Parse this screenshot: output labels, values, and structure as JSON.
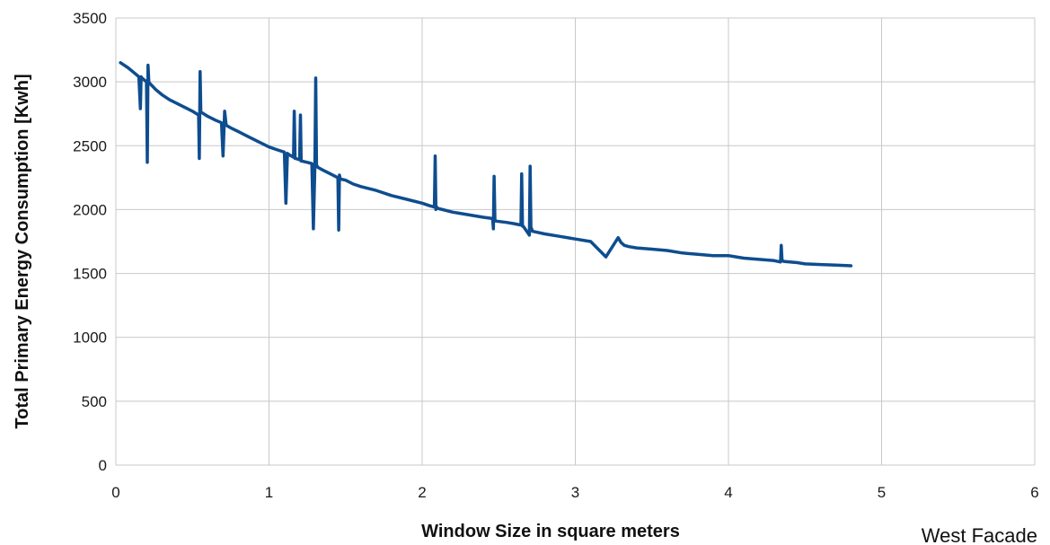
{
  "chart_data": {
    "type": "line",
    "title": "",
    "xlabel": "Window Size in square meters",
    "ylabel": "Total Primary Energy Consumption [Kwh]",
    "caption": "West Facade",
    "xlim": [
      0,
      6
    ],
    "ylim": [
      0,
      3500
    ],
    "x_ticks": [
      0,
      1,
      2,
      3,
      4,
      5,
      6
    ],
    "y_ticks": [
      0,
      500,
      1000,
      1500,
      2000,
      2500,
      3000,
      3500
    ],
    "grid": true,
    "legend": "none",
    "colors": {
      "series": "#0e4d8f",
      "grid": "#c8c8c8"
    },
    "series": [
      {
        "x": [
          0.03,
          0.08,
          0.12,
          0.15,
          0.16,
          0.165,
          0.17,
          0.2,
          0.205,
          0.21,
          0.215,
          0.22,
          0.26,
          0.3,
          0.35,
          0.4,
          0.45,
          0.5,
          0.54,
          0.545,
          0.55,
          0.555,
          0.56,
          0.6,
          0.65,
          0.69,
          0.7,
          0.71,
          0.72,
          0.75,
          0.8,
          0.85,
          0.9,
          0.95,
          1.0,
          1.05,
          1.1,
          1.11,
          1.12,
          1.13,
          1.16,
          1.165,
          1.17,
          1.175,
          1.2,
          1.205,
          1.21,
          1.215,
          1.25,
          1.28,
          1.29,
          1.3,
          1.305,
          1.31,
          1.315,
          1.32,
          1.35,
          1.4,
          1.45,
          1.455,
          1.46,
          1.465,
          1.5,
          1.55,
          1.6,
          1.7,
          1.8,
          1.9,
          2.0,
          2.05,
          2.08,
          2.085,
          2.09,
          2.095,
          2.1,
          2.2,
          2.3,
          2.4,
          2.46,
          2.465,
          2.47,
          2.475,
          2.48,
          2.55,
          2.6,
          2.64,
          2.645,
          2.65,
          2.655,
          2.66,
          2.7,
          2.705,
          2.71,
          2.715,
          2.72,
          2.8,
          2.9,
          3.0,
          3.1,
          3.2,
          3.28,
          3.3,
          3.31,
          3.32,
          3.35,
          3.4,
          3.5,
          3.6,
          3.7,
          3.8,
          3.9,
          4.0,
          4.05,
          4.1,
          4.2,
          4.3,
          4.34,
          4.345,
          4.35,
          4.355,
          4.36,
          4.4,
          4.45,
          4.5,
          4.6,
          4.7,
          4.8
        ],
        "y": [
          3150,
          3110,
          3070,
          3040,
          2790,
          3040,
          3030,
          3000,
          2370,
          3130,
          3000,
          2990,
          2940,
          2900,
          2860,
          2830,
          2800,
          2770,
          2740,
          2400,
          3080,
          2760,
          2760,
          2730,
          2700,
          2680,
          2420,
          2770,
          2660,
          2640,
          2610,
          2580,
          2550,
          2520,
          2490,
          2470,
          2450,
          2050,
          2440,
          2430,
          2410,
          2770,
          2400,
          2400,
          2390,
          2740,
          2380,
          2380,
          2370,
          2360,
          1850,
          2350,
          3030,
          2340,
          2340,
          2330,
          2310,
          2280,
          2250,
          1840,
          2270,
          2240,
          2230,
          2200,
          2180,
          2150,
          2110,
          2080,
          2050,
          2030,
          2020,
          2420,
          2000,
          2020,
          2010,
          1980,
          1960,
          1940,
          1930,
          1850,
          2260,
          1920,
          1910,
          1900,
          1890,
          1880,
          1880,
          2280,
          1870,
          1870,
          1800,
          2340,
          1860,
          1850,
          1830,
          1810,
          1790,
          1770,
          1750,
          1630,
          1780,
          1740,
          1730,
          1720,
          1710,
          1700,
          1690,
          1680,
          1660,
          1650,
          1640,
          1640,
          1630,
          1620,
          1610,
          1600,
          1590,
          1720,
          1600,
          1600,
          1595,
          1590,
          1585,
          1575,
          1570,
          1565,
          1560
        ]
      }
    ]
  }
}
